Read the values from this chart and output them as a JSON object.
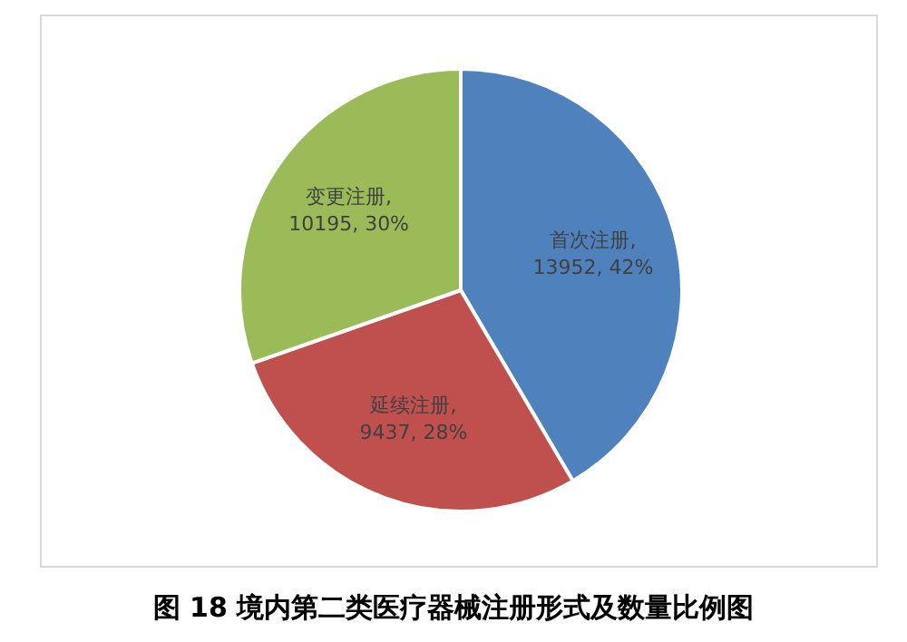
{
  "chart_data": {
    "type": "pie",
    "categories": [
      "首次注册",
      "延续注册",
      "变更注册"
    ],
    "values": [
      13952,
      9437,
      10195
    ],
    "colors": [
      "#4f81bd",
      "#c0504d",
      "#9bbb59"
    ],
    "value_labels": [
      ", 13952, 42%",
      ", 9437, 28%",
      ", 10195, 30%"
    ],
    "annotations": [
      "图 18 境内第二类医疗器械注册形式及数量比例图"
    ]
  }
}
